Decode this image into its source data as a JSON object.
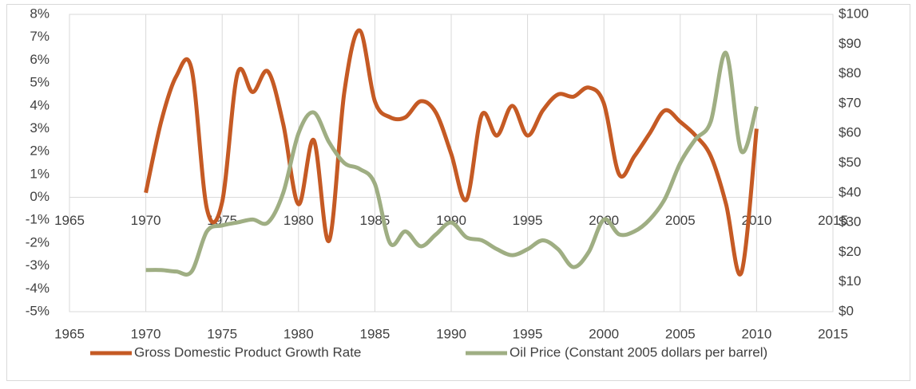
{
  "chart_data": {
    "type": "line",
    "x": [
      1970,
      1971,
      1972,
      1973,
      1974,
      1975,
      1976,
      1977,
      1978,
      1979,
      1980,
      1981,
      1982,
      1983,
      1984,
      1985,
      1986,
      1987,
      1988,
      1989,
      1990,
      1991,
      1992,
      1993,
      1994,
      1995,
      1996,
      1997,
      1998,
      1999,
      2000,
      2001,
      2002,
      2003,
      2004,
      2005,
      2006,
      2007,
      2008,
      2009,
      2010
    ],
    "series": [
      {
        "name": "Gross Domestic Product Growth Rate",
        "color": "#c55a24",
        "values": [
          0.2,
          3.3,
          5.3,
          5.6,
          -0.5,
          -0.2,
          5.4,
          4.6,
          5.5,
          3.2,
          -0.3,
          2.5,
          -1.9,
          4.6,
          7.3,
          4.2,
          3.5,
          3.5,
          4.2,
          3.7,
          1.9,
          -0.1,
          3.6,
          2.7,
          4.0,
          2.7,
          3.8,
          4.5,
          4.4,
          4.8,
          4.1,
          1.0,
          1.8,
          2.8,
          3.8,
          3.3,
          2.7,
          1.8,
          -0.3,
          -3.3,
          3.0
        ]
      },
      {
        "name": "Oil Price (Constant 2005 dollars per barrel)",
        "color": "#9fae83",
        "axis": "y2",
        "values": [
          14,
          14,
          13.5,
          13.5,
          27,
          29,
          30,
          31,
          30,
          40,
          60,
          67,
          57,
          50,
          48,
          43,
          23,
          27,
          22,
          26,
          30,
          25,
          24,
          21,
          19,
          21,
          24,
          21,
          15,
          20,
          31,
          26,
          27,
          31,
          38,
          50,
          58,
          64,
          87,
          54,
          69
        ]
      }
    ],
    "xlim": [
      1965,
      2015
    ],
    "xticks": [
      1965,
      1970,
      1975,
      1980,
      1985,
      1990,
      1995,
      2000,
      2005,
      2010,
      2015
    ],
    "ylim": [
      -5,
      8
    ],
    "yticks": [
      {
        "value": -5,
        "label": "-5%"
      },
      {
        "value": -4,
        "label": "-4%"
      },
      {
        "value": -3,
        "label": "-3%"
      },
      {
        "value": -2,
        "label": "-2%"
      },
      {
        "value": -1,
        "label": "-1%"
      },
      {
        "value": 0,
        "label": "0%"
      },
      {
        "value": 1,
        "label": "1%"
      },
      {
        "value": 2,
        "label": "2%"
      },
      {
        "value": 3,
        "label": "3%"
      },
      {
        "value": 4,
        "label": "4%"
      },
      {
        "value": 5,
        "label": "5%"
      },
      {
        "value": 6,
        "label": "6%"
      },
      {
        "value": 7,
        "label": "7%"
      },
      {
        "value": 8,
        "label": "8%"
      }
    ],
    "y2lim": [
      0,
      100
    ],
    "y2ticks": [
      {
        "value": 0,
        "label": "$0"
      },
      {
        "value": 10,
        "label": "$10"
      },
      {
        "value": 20,
        "label": "$20"
      },
      {
        "value": 30,
        "label": "$30"
      },
      {
        "value": 40,
        "label": "$40"
      },
      {
        "value": 50,
        "label": "$50"
      },
      {
        "value": 60,
        "label": "$60"
      },
      {
        "value": 70,
        "label": "$70"
      },
      {
        "value": 80,
        "label": "$80"
      },
      {
        "value": 90,
        "label": "$90"
      },
      {
        "value": 100,
        "label": "$100"
      }
    ],
    "grid": "x",
    "smooth": true,
    "legend": "bottom"
  }
}
